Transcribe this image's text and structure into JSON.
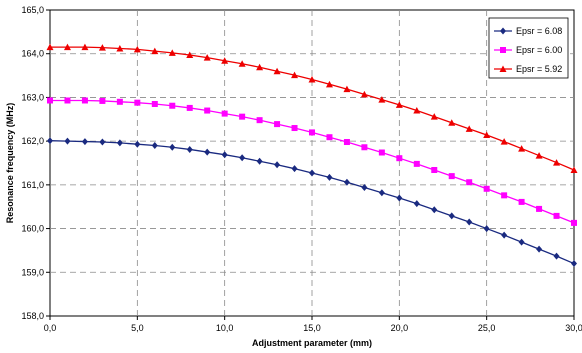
{
  "chart_data": {
    "type": "line",
    "title": "",
    "xlabel": "Adjustment parameter (mm)",
    "ylabel": "Resonance frequency (MHz)",
    "xlim": [
      0,
      30
    ],
    "ylim": [
      158,
      165
    ],
    "xticks": [
      "0,0",
      "5,0",
      "10,0",
      "15,0",
      "20,0",
      "25,0",
      "30,0"
    ],
    "yticks": [
      "158,0",
      "159,0",
      "160,0",
      "161,0",
      "162,0",
      "163,0",
      "164,0",
      "165,0"
    ],
    "grid": true,
    "legend_position": "top-right",
    "x": [
      0,
      1,
      2,
      3,
      4,
      5,
      6,
      7,
      8,
      9,
      10,
      11,
      12,
      13,
      14,
      15,
      16,
      17,
      18,
      19,
      20,
      21,
      22,
      23,
      24,
      25,
      26,
      27,
      28,
      29,
      30
    ],
    "series": [
      {
        "name": "Epsr = 6.08",
        "color": "#1a2a80",
        "marker": "diamond",
        "values": [
          162.01,
          162.0,
          161.99,
          161.98,
          161.96,
          161.93,
          161.9,
          161.86,
          161.81,
          161.75,
          161.69,
          161.62,
          161.54,
          161.46,
          161.37,
          161.27,
          161.17,
          161.06,
          160.94,
          160.82,
          160.7,
          160.57,
          160.43,
          160.29,
          160.15,
          160.0,
          159.85,
          159.69,
          159.53,
          159.37,
          159.2
        ]
      },
      {
        "name": "Epsr = 6.00",
        "color": "#ff00ff",
        "marker": "square",
        "values": [
          162.93,
          162.93,
          162.93,
          162.92,
          162.9,
          162.88,
          162.85,
          162.81,
          162.76,
          162.7,
          162.63,
          162.56,
          162.48,
          162.39,
          162.3,
          162.2,
          162.09,
          161.98,
          161.86,
          161.74,
          161.61,
          161.48,
          161.34,
          161.2,
          161.06,
          160.91,
          160.76,
          160.61,
          160.45,
          160.29,
          160.13
        ]
      },
      {
        "name": "Epsr = 5.92",
        "color": "#ee0000",
        "marker": "triangle",
        "values": [
          164.15,
          164.15,
          164.15,
          164.14,
          164.12,
          164.1,
          164.06,
          164.02,
          163.97,
          163.91,
          163.84,
          163.77,
          163.69,
          163.6,
          163.51,
          163.41,
          163.3,
          163.19,
          163.07,
          162.95,
          162.83,
          162.7,
          162.56,
          162.42,
          162.28,
          162.14,
          161.99,
          161.83,
          161.67,
          161.51,
          161.34
        ]
      }
    ]
  }
}
